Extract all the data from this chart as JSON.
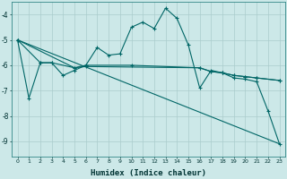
{
  "xlabel": "Humidex (Indice chaleur)",
  "bg_color": "#cce8e8",
  "grid_color": "#aacccc",
  "line_color": "#006666",
  "xlim": [
    -0.5,
    23.5
  ],
  "ylim": [
    -9.6,
    -3.5
  ],
  "yticks": [
    -9,
    -8,
    -7,
    -6,
    -5,
    -4
  ],
  "xticks": [
    0,
    1,
    2,
    3,
    4,
    5,
    6,
    7,
    8,
    9,
    10,
    11,
    12,
    13,
    14,
    15,
    16,
    17,
    18,
    19,
    20,
    21,
    22,
    23
  ],
  "series1": [
    [
      0,
      -5.0
    ],
    [
      1,
      -7.3
    ],
    [
      2,
      -5.9
    ],
    [
      3,
      -5.9
    ],
    [
      4,
      -6.4
    ],
    [
      5,
      -6.2
    ],
    [
      6,
      -6.0
    ],
    [
      7,
      -5.3
    ],
    [
      8,
      -5.6
    ],
    [
      9,
      -5.55
    ],
    [
      10,
      -4.5
    ],
    [
      11,
      -4.3
    ],
    [
      12,
      -4.55
    ],
    [
      13,
      -3.75
    ],
    [
      14,
      -4.15
    ],
    [
      15,
      -5.2
    ],
    [
      16,
      -6.9
    ],
    [
      17,
      -6.2
    ],
    [
      18,
      -6.3
    ],
    [
      19,
      -6.5
    ],
    [
      20,
      -6.55
    ],
    [
      21,
      -6.65
    ],
    [
      22,
      -7.8
    ],
    [
      23,
      -9.1
    ]
  ],
  "series2": [
    [
      0,
      -5.0
    ],
    [
      2,
      -5.9
    ],
    [
      3,
      -5.9
    ],
    [
      5,
      -6.1
    ],
    [
      6,
      -6.0
    ],
    [
      10,
      -6.0
    ],
    [
      16,
      -6.1
    ],
    [
      17,
      -6.25
    ],
    [
      18,
      -6.3
    ],
    [
      19,
      -6.4
    ],
    [
      20,
      -6.45
    ],
    [
      21,
      -6.5
    ],
    [
      23,
      -6.6
    ]
  ],
  "series3": [
    [
      0,
      -5.0
    ],
    [
      23,
      -9.1
    ]
  ],
  "series4": [
    [
      0,
      -5.0
    ],
    [
      5,
      -6.1
    ],
    [
      6,
      -6.05
    ],
    [
      16,
      -6.1
    ],
    [
      17,
      -6.25
    ],
    [
      18,
      -6.3
    ],
    [
      19,
      -6.4
    ],
    [
      20,
      -6.45
    ],
    [
      21,
      -6.5
    ],
    [
      23,
      -6.6
    ]
  ]
}
